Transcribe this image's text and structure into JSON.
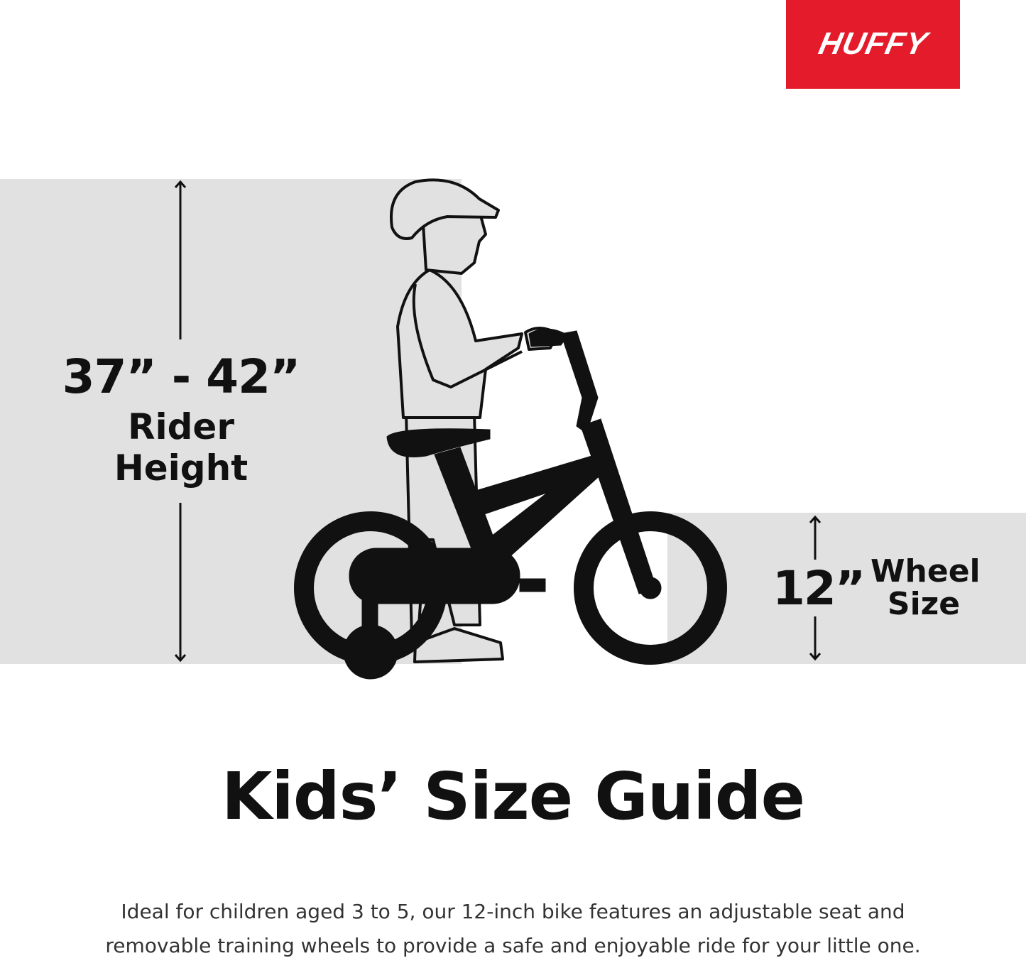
{
  "brand": {
    "logo_text": "HUFFY",
    "color": "#e41b2a"
  },
  "rider_height": {
    "value": "37” - 42”",
    "label_line1": "Rider",
    "label_line2": "Height"
  },
  "wheel_size": {
    "value": "12”",
    "label_line1": "Wheel",
    "label_line2": "Size"
  },
  "title": "Kids’ Size Guide",
  "description": "Ideal for children aged 3 to 5, our 12-inch bike features an adjustable seat and removable training wheels to provide a safe and enjoyable ride for your little one.",
  "colors": {
    "panel": "#e1e1e1",
    "ink": "#111111"
  },
  "illustration": "child-with-helmet-on-bike-with-training-wheels"
}
